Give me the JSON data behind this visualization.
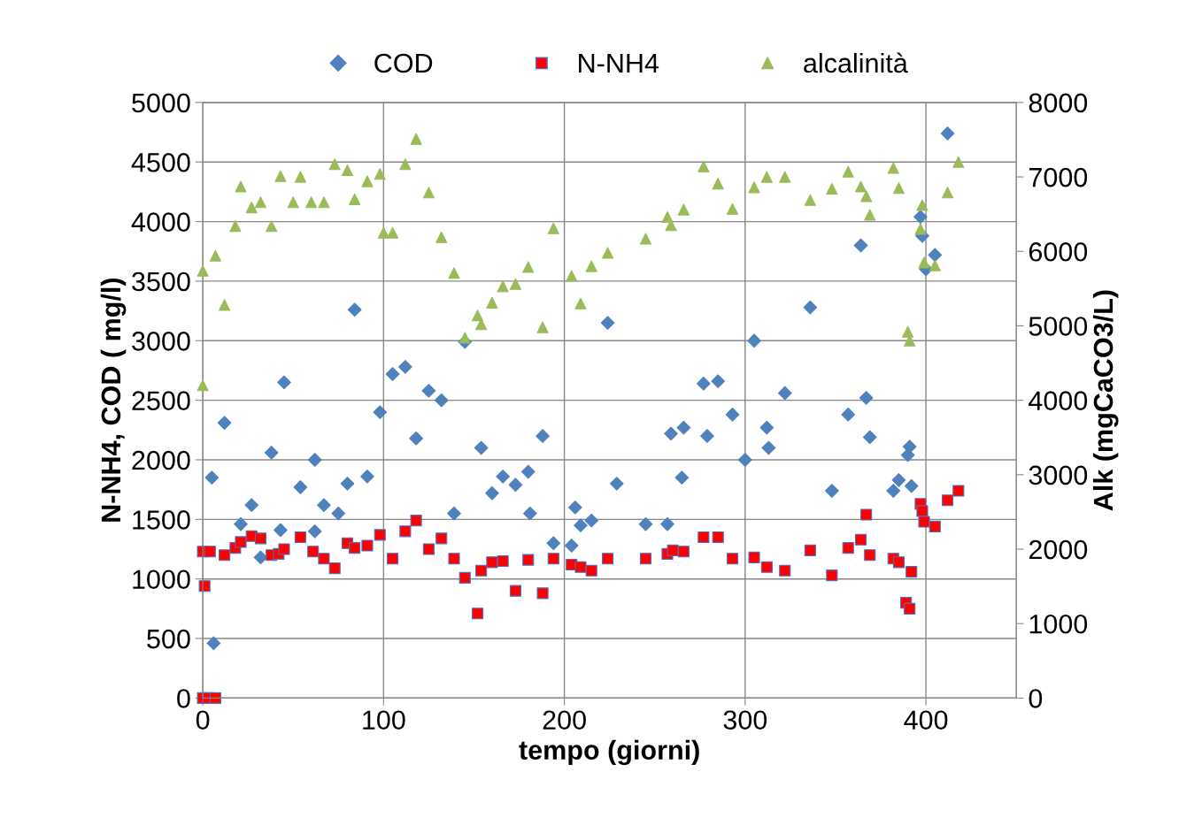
{
  "chart_data": {
    "type": "scatter",
    "xlabel": "tempo (giorni)",
    "ylabel": "N-NH4, COD ( mg/l)",
    "y2label": "Alk (mgCaCO3/L)",
    "xlim": [
      0,
      450
    ],
    "xticks": [
      0,
      100,
      200,
      300,
      400
    ],
    "ylim": [
      0,
      5000
    ],
    "yticks": [
      0,
      500,
      1000,
      1500,
      2000,
      2500,
      3000,
      3500,
      4000,
      4500,
      5000
    ],
    "y2lim": [
      0,
      8000
    ],
    "y2ticks": [
      0,
      1000,
      2000,
      3000,
      4000,
      5000,
      6000,
      7000,
      8000
    ],
    "grid": true,
    "legend": "top",
    "series": [
      {
        "name": "COD",
        "color": "#4f81bd",
        "marker": "diamond",
        "x": [
          5,
          6,
          12,
          21,
          27,
          32,
          38,
          43,
          45,
          54,
          62,
          62,
          67,
          75,
          80,
          84,
          91,
          98,
          105,
          112,
          118,
          125,
          132,
          139,
          145,
          154,
          160,
          166,
          173,
          180,
          181,
          188,
          194,
          204,
          206,
          209,
          215,
          224,
          229,
          245,
          257,
          259,
          266,
          265,
          277,
          279,
          285,
          293,
          300,
          305,
          312,
          313,
          322,
          336,
          348,
          357,
          364,
          367,
          369,
          382,
          385,
          391,
          390,
          392,
          397,
          398,
          400,
          405,
          412
        ],
        "values": [
          1850,
          460,
          2310,
          1460,
          1620,
          1180,
          2060,
          1410,
          2650,
          1770,
          1400,
          2000,
          1620,
          1550,
          1800,
          3260,
          1860,
          2400,
          2720,
          2780,
          2180,
          2580,
          2500,
          1550,
          2990,
          2100,
          1720,
          1860,
          1790,
          1900,
          1550,
          2200,
          1300,
          1280,
          1600,
          1450,
          1490,
          3150,
          1800,
          1460,
          1460,
          2220,
          2270,
          1850,
          2640,
          2200,
          2660,
          2380,
          2000,
          3000,
          2270,
          2100,
          2560,
          3280,
          1740,
          2380,
          3800,
          2520,
          2190,
          1740,
          1830,
          2110,
          2040,
          1780,
          4040,
          3880,
          3600,
          3720,
          4740
        ]
      },
      {
        "name": "N-NH4",
        "color": "#ff0000",
        "marker": "square",
        "x": [
          0,
          1,
          4,
          0,
          3,
          7,
          12,
          18,
          21,
          27,
          32,
          38,
          42,
          45,
          54,
          61,
          67,
          73,
          80,
          84,
          91,
          98,
          105,
          112,
          118,
          125,
          132,
          139,
          145,
          152,
          154,
          160,
          166,
          173,
          180,
          188,
          194,
          204,
          209,
          215,
          224,
          245,
          257,
          260,
          266,
          277,
          285,
          293,
          305,
          312,
          322,
          336,
          348,
          357,
          364,
          367,
          369,
          382,
          385,
          389,
          391,
          392,
          397,
          398,
          399,
          405,
          412,
          418
        ],
        "values": [
          1230,
          940,
          1230,
          0,
          0,
          0,
          1200,
          1260,
          1310,
          1360,
          1340,
          1200,
          1210,
          1250,
          1350,
          1230,
          1170,
          1090,
          1300,
          1260,
          1280,
          1370,
          1170,
          1400,
          1490,
          1250,
          1340,
          1170,
          1010,
          710,
          1070,
          1140,
          1150,
          900,
          1160,
          880,
          1170,
          1120,
          1100,
          1070,
          1170,
          1170,
          1210,
          1240,
          1230,
          1350,
          1350,
          1170,
          1180,
          1100,
          1070,
          1240,
          1030,
          1260,
          1330,
          1540,
          1200,
          1170,
          1140,
          800,
          750,
          1060,
          1630,
          1570,
          1480,
          1440,
          1660,
          1740
        ]
      },
      {
        "name": "alcalinità",
        "color": "#9bbb59",
        "marker": "triangle",
        "axis": "y2",
        "x": [
          0,
          0,
          7,
          12,
          18,
          21,
          27,
          32,
          38,
          43,
          54,
          50,
          60,
          67,
          73,
          80,
          84,
          91,
          98,
          100,
          105,
          112,
          118,
          125,
          132,
          139,
          145,
          152,
          154,
          160,
          166,
          173,
          180,
          188,
          194,
          204,
          209,
          215,
          224,
          245,
          257,
          259,
          266,
          277,
          285,
          293,
          305,
          312,
          322,
          336,
          348,
          357,
          364,
          367,
          369,
          382,
          385,
          390,
          391,
          397,
          398,
          399,
          405,
          412,
          418
        ],
        "values": [
          4200,
          5740,
          5940,
          5280,
          6340,
          6870,
          6590,
          6660,
          6340,
          7010,
          7000,
          6660,
          6660,
          6660,
          7170,
          7090,
          6700,
          6940,
          7040,
          6250,
          6250,
          7170,
          7510,
          6790,
          6190,
          5710,
          4840,
          5140,
          5020,
          5310,
          5530,
          5560,
          5790,
          4980,
          6310,
          5670,
          5300,
          5800,
          5980,
          6170,
          6460,
          6350,
          6560,
          7140,
          6910,
          6570,
          6860,
          7000,
          7000,
          6690,
          6840,
          7070,
          6870,
          6740,
          6490,
          7120,
          6850,
          4920,
          4800,
          6300,
          6620,
          5850,
          5810,
          6790,
          7200
        ]
      }
    ]
  }
}
